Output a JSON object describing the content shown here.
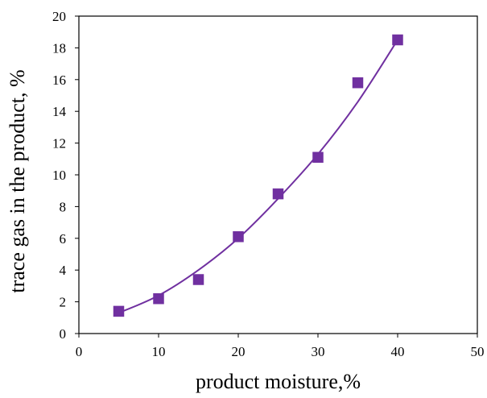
{
  "chart_data": {
    "type": "scatter",
    "xlabel": "product moisture,%",
    "ylabel": "trace gas in the product, %",
    "xlim": [
      0,
      50
    ],
    "ylim": [
      0,
      20
    ],
    "x_ticks": [
      0,
      10,
      20,
      30,
      40,
      50
    ],
    "y_ticks": [
      0,
      2,
      4,
      6,
      8,
      10,
      12,
      14,
      16,
      18,
      20
    ],
    "grid": true,
    "series": [
      {
        "kind": "markers",
        "marker": "square",
        "color": "#7030a0",
        "x": [
          5,
          10,
          15,
          20,
          25,
          30,
          35,
          40
        ],
        "y": [
          1.4,
          2.2,
          3.4,
          6.1,
          8.8,
          11.1,
          15.8,
          18.5
        ]
      },
      {
        "kind": "trendline",
        "color": "#7030a0",
        "x": [
          5,
          10,
          15,
          20,
          25,
          30,
          35,
          40
        ],
        "y": [
          1.3,
          2.4,
          4.0,
          6.0,
          8.5,
          11.3,
          14.6,
          18.5
        ]
      }
    ]
  }
}
